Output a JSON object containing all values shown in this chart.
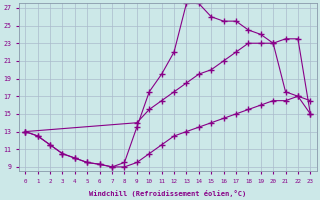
{
  "xlabel": "Windchill (Refroidissement éolien,°C)",
  "bg_color": "#cce8e8",
  "line_color": "#880088",
  "grid_color": "#aabbcc",
  "xlim": [
    -0.5,
    23.5
  ],
  "ylim": [
    8.5,
    27.5
  ],
  "xticks": [
    0,
    1,
    2,
    3,
    4,
    5,
    6,
    7,
    8,
    9,
    10,
    11,
    12,
    13,
    14,
    15,
    16,
    17,
    18,
    19,
    20,
    21,
    22,
    23
  ],
  "yticks": [
    9,
    11,
    13,
    15,
    17,
    19,
    21,
    23,
    25,
    27
  ],
  "curve_top_x": [
    0,
    1,
    2,
    3,
    4,
    5,
    6,
    7,
    8,
    9,
    10,
    11,
    12,
    13,
    14,
    15,
    16,
    17,
    18,
    19,
    20,
    21,
    22,
    23
  ],
  "curve_top_y": [
    13,
    12.5,
    11.5,
    10.5,
    10.0,
    9.5,
    9.3,
    9.0,
    9.5,
    13.5,
    17.5,
    19.5,
    22.0,
    27.5,
    27.5,
    26.0,
    25.5,
    25.5,
    24.5,
    24.0,
    23.0,
    17.5,
    17.0,
    16.5
  ],
  "curve_mid_x": [
    0,
    9,
    10,
    11,
    12,
    13,
    14,
    15,
    16,
    17,
    18,
    19,
    20,
    21,
    22,
    23
  ],
  "curve_mid_y": [
    13,
    14.0,
    15.5,
    16.5,
    17.5,
    18.5,
    19.5,
    20.0,
    21.0,
    22.0,
    23.0,
    23.0,
    23.0,
    23.5,
    23.5,
    15.0
  ],
  "curve_bot_x": [
    0,
    1,
    2,
    3,
    4,
    5,
    6,
    7,
    8,
    9,
    10,
    11,
    12,
    13,
    14,
    15,
    16,
    17,
    18,
    19,
    20,
    21,
    22,
    23
  ],
  "curve_bot_y": [
    13,
    12.5,
    11.5,
    10.5,
    10.0,
    9.5,
    9.3,
    9.0,
    9.0,
    9.5,
    10.5,
    11.5,
    12.5,
    13.0,
    13.5,
    14.0,
    14.5,
    15.0,
    15.5,
    16.0,
    16.5,
    16.5,
    17.0,
    15.0
  ]
}
